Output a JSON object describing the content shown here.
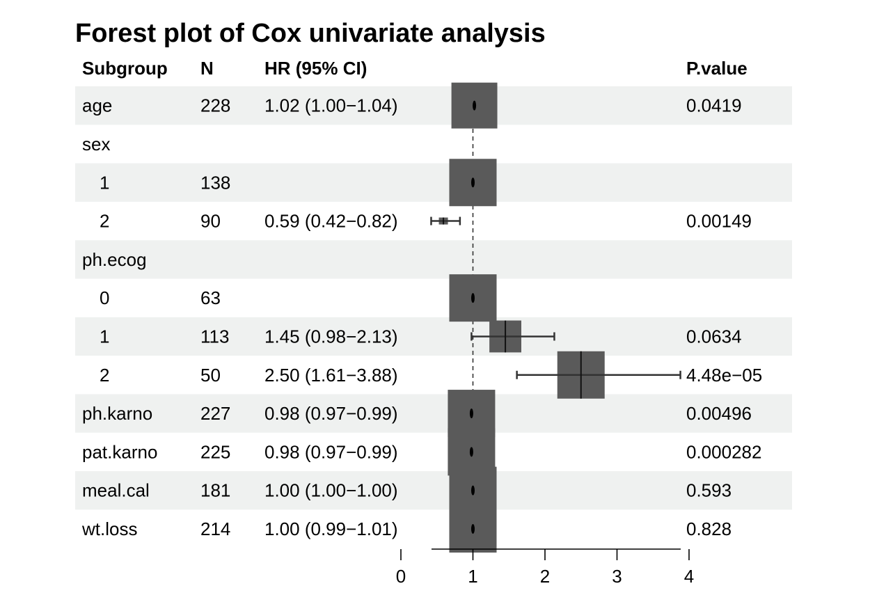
{
  "chart_data": {
    "type": "forest",
    "title": "Forest plot of Cox univariate analysis",
    "columns": [
      "Subgroup",
      "N",
      "HR (95% CI)",
      "P.value"
    ],
    "reference_line": 1,
    "xlim": [
      0,
      4
    ],
    "xticks": [
      "0",
      "1",
      "2",
      "3",
      "4"
    ],
    "rows": [
      {
        "subgroup": "age",
        "indent": false,
        "n": "228",
        "hr_text": "1.02 (1.00−1.04)",
        "p": "0.0419",
        "hr": 1.02,
        "lo": 1.0,
        "hi": 1.04
      },
      {
        "subgroup": "sex",
        "indent": false,
        "n": "",
        "hr_text": "",
        "p": "",
        "hr": null,
        "lo": null,
        "hi": null
      },
      {
        "subgroup": "1",
        "indent": true,
        "n": "138",
        "hr_text": "",
        "p": "",
        "hr": 1.0,
        "lo": 1.0,
        "hi": 1.0
      },
      {
        "subgroup": "2",
        "indent": true,
        "n": "90",
        "hr_text": "0.59 (0.42−0.82)",
        "p": "0.00149",
        "hr": 0.59,
        "lo": 0.42,
        "hi": 0.82
      },
      {
        "subgroup": "ph.ecog",
        "indent": false,
        "n": "",
        "hr_text": "",
        "p": "",
        "hr": null,
        "lo": null,
        "hi": null
      },
      {
        "subgroup": "0",
        "indent": true,
        "n": "63",
        "hr_text": "",
        "p": "",
        "hr": 1.0,
        "lo": 1.0,
        "hi": 1.0
      },
      {
        "subgroup": "1",
        "indent": true,
        "n": "113",
        "hr_text": "1.45 (0.98−2.13)",
        "p": "0.0634",
        "hr": 1.45,
        "lo": 0.98,
        "hi": 2.13
      },
      {
        "subgroup": "2",
        "indent": true,
        "n": "50",
        "hr_text": "2.50 (1.61−3.88)",
        "p": "4.48e−05",
        "hr": 2.5,
        "lo": 1.61,
        "hi": 3.88
      },
      {
        "subgroup": "ph.karno",
        "indent": false,
        "n": "227",
        "hr_text": "0.98 (0.97−0.99)",
        "p": "0.00496",
        "hr": 0.98,
        "lo": 0.97,
        "hi": 0.99
      },
      {
        "subgroup": "pat.karno",
        "indent": false,
        "n": "225",
        "hr_text": "0.98 (0.97−0.99)",
        "p": "0.000282",
        "hr": 0.98,
        "lo": 0.97,
        "hi": 0.99
      },
      {
        "subgroup": "meal.cal",
        "indent": false,
        "n": "181",
        "hr_text": "1.00 (1.00−1.00)",
        "p": "0.593",
        "hr": 1.0,
        "lo": 1.0,
        "hi": 1.0
      },
      {
        "subgroup": "wt.loss",
        "indent": false,
        "n": "214",
        "hr_text": "1.00 (0.99−1.01)",
        "p": "0.828",
        "hr": 1.0,
        "lo": 0.99,
        "hi": 1.01
      }
    ],
    "colors": {
      "stripe": "#eff1f0",
      "box": "#5a5a5a",
      "line": "#333333"
    }
  }
}
